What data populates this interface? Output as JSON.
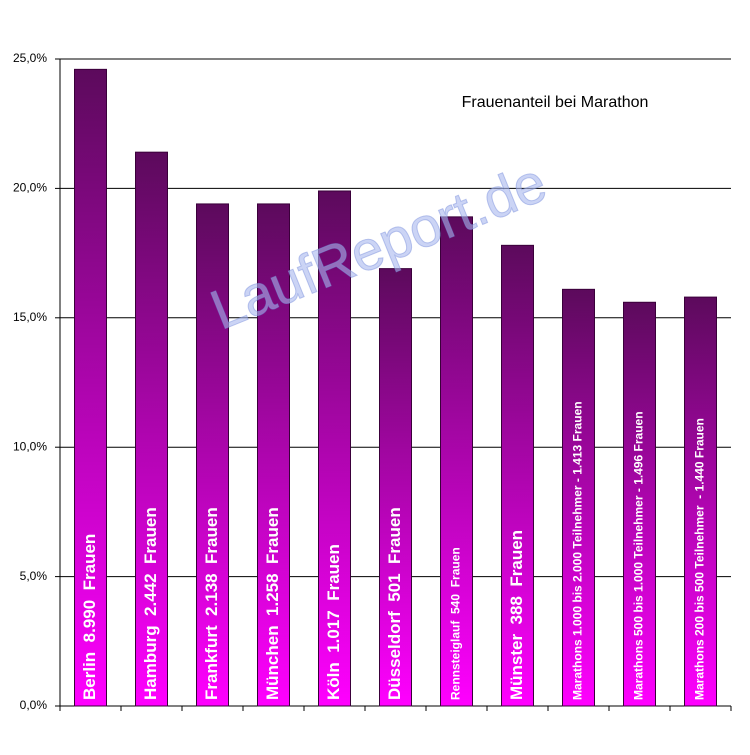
{
  "chart_data": {
    "type": "bar",
    "title": "Frauenanteil bei Marathon",
    "watermark": "LaufReport.de",
    "categories": [
      "Berlin  8.990  Frauen",
      "Hamburg  2.442  Frauen",
      "Frankfurt  2.138  Frauen",
      "München  1.258  Frauen",
      "Köln  1.017  Frauen",
      "Düsseldorf  501  Frauen",
      "Rennsteiglauf  540  Frauen",
      "Münster  388  Frauen",
      "Marathons 1.000 bis 2.000 Teilnehmer - 1.413 Frauen",
      "Marathons 500 bis 1.000 Teilnehmer - 1.496 Frauen",
      "Marathons 200 bis 500 Teilnehmer  - 1.440 Frauen"
    ],
    "values": [
      24.6,
      21.4,
      19.4,
      19.4,
      19.9,
      16.9,
      18.9,
      17.8,
      16.1,
      15.6,
      15.8
    ],
    "color": "#ff00ff",
    "ylim": [
      0,
      25
    ],
    "yticks": [
      {
        "value": 0,
        "label": "0,0%"
      },
      {
        "value": 5,
        "label": "5,0%"
      },
      {
        "value": 10,
        "label": "10,0%"
      },
      {
        "value": 15,
        "label": "15,0%"
      },
      {
        "value": 20,
        "label": "20,0%"
      },
      {
        "value": 25,
        "label": "25,0%"
      }
    ],
    "grid": true
  }
}
